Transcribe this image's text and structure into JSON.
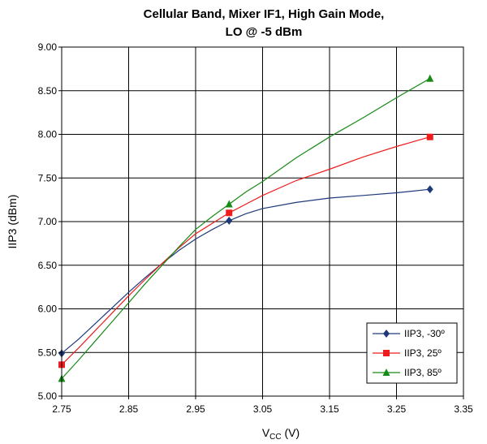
{
  "chart_data": {
    "type": "line",
    "title_line1": "Cellular Band, Mixer IF1, High Gain Mode,",
    "title_line2": "LO @ -5 dBm",
    "xlabel_main": "V",
    "xlabel_sub": "CC",
    "xlabel_unit": " (V)",
    "ylabel": "IIP3 (dBm)",
    "xlim": [
      2.75,
      3.35
    ],
    "ylim": [
      5.0,
      9.0
    ],
    "xticks": [
      "2.75",
      "2.85",
      "2.95",
      "3.05",
      "3.15",
      "3.25",
      "3.35"
    ],
    "yticks": [
      "5.00",
      "5.50",
      "6.00",
      "6.50",
      "7.00",
      "7.50",
      "8.00",
      "8.50",
      "9.00"
    ],
    "grid": true,
    "legend_position": "bottom-right",
    "series": [
      {
        "name": "IIP3, -30º",
        "color": "#1f3a7a",
        "marker": "diamond",
        "x": [
          2.75,
          2.775,
          2.8,
          2.825,
          2.85,
          2.875,
          2.9,
          2.925,
          2.95,
          2.975,
          3.0,
          3.025,
          3.05,
          3.1,
          3.15,
          3.2,
          3.25,
          3.3
        ],
        "y": [
          5.49,
          5.65,
          5.83,
          6.01,
          6.19,
          6.36,
          6.52,
          6.67,
          6.8,
          6.91,
          7.01,
          7.09,
          7.15,
          7.22,
          7.27,
          7.3,
          7.33,
          7.37
        ],
        "markers_at": [
          2.75,
          3.0,
          3.3
        ]
      },
      {
        "name": "IIP3, 25º",
        "color": "#ee1c1c",
        "marker": "square",
        "x": [
          2.75,
          2.775,
          2.8,
          2.825,
          2.85,
          2.875,
          2.9,
          2.925,
          2.95,
          2.975,
          3.0,
          3.025,
          3.05,
          3.1,
          3.15,
          3.2,
          3.25,
          3.3
        ],
        "y": [
          5.36,
          5.55,
          5.75,
          5.95,
          6.15,
          6.34,
          6.52,
          6.7,
          6.86,
          6.98,
          7.1,
          7.2,
          7.3,
          7.47,
          7.6,
          7.74,
          7.86,
          7.97
        ],
        "markers_at": [
          2.75,
          3.0,
          3.3
        ]
      },
      {
        "name": "IIP3, 85º",
        "color": "#178a17",
        "marker": "triangle",
        "x": [
          2.75,
          2.775,
          2.8,
          2.825,
          2.85,
          2.875,
          2.9,
          2.925,
          2.95,
          2.975,
          3.0,
          3.025,
          3.05,
          3.1,
          3.15,
          3.2,
          3.25,
          3.3
        ],
        "y": [
          5.2,
          5.41,
          5.63,
          5.85,
          6.07,
          6.29,
          6.5,
          6.71,
          6.91,
          7.06,
          7.2,
          7.34,
          7.46,
          7.73,
          7.97,
          8.19,
          8.42,
          8.64
        ],
        "markers_at": [
          2.75,
          3.0,
          3.3
        ]
      }
    ]
  }
}
